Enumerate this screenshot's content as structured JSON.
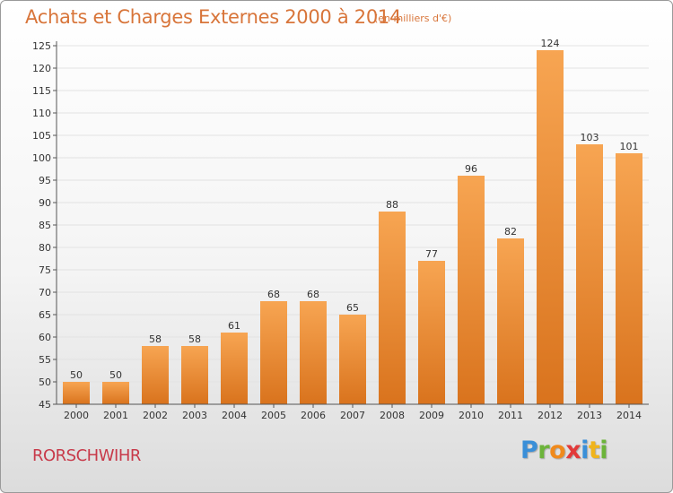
{
  "chart_data": {
    "type": "bar",
    "title": "Achats et Charges Externes 2000 à 2014",
    "subtitle": "(en milliers d'€)",
    "categories": [
      "2000",
      "2001",
      "2002",
      "2003",
      "2004",
      "2005",
      "2006",
      "2007",
      "2008",
      "2009",
      "2010",
      "2011",
      "2012",
      "2013",
      "2014"
    ],
    "values": [
      50,
      50,
      58,
      58,
      61,
      68,
      68,
      65,
      88,
      77,
      96,
      82,
      124,
      103,
      101
    ],
    "ylim": [
      45,
      125
    ],
    "yticks": [
      45,
      50,
      55,
      60,
      65,
      70,
      75,
      80,
      85,
      90,
      95,
      100,
      105,
      110,
      115,
      120,
      125
    ],
    "grid": true,
    "legend": "none",
    "bar_color_top": "#f7a552",
    "bar_color_bottom": "#d9731d",
    "grid_color": "#e2e2e2"
  },
  "location": "RORSCHWIHR",
  "logo": {
    "letters": [
      {
        "char": "P",
        "color": "#3a8fd8"
      },
      {
        "char": "r",
        "color": "#6cb43a"
      },
      {
        "char": "o",
        "color": "#f08a1c"
      },
      {
        "char": "x",
        "color": "#e23a3a"
      },
      {
        "char": "i",
        "color": "#3a8fd8"
      },
      {
        "char": "t",
        "color": "#f0b41c"
      },
      {
        "char": "i",
        "color": "#6cb43a"
      }
    ]
  },
  "colors": {
    "title": "#d8753a",
    "location": "#c83a4a"
  }
}
